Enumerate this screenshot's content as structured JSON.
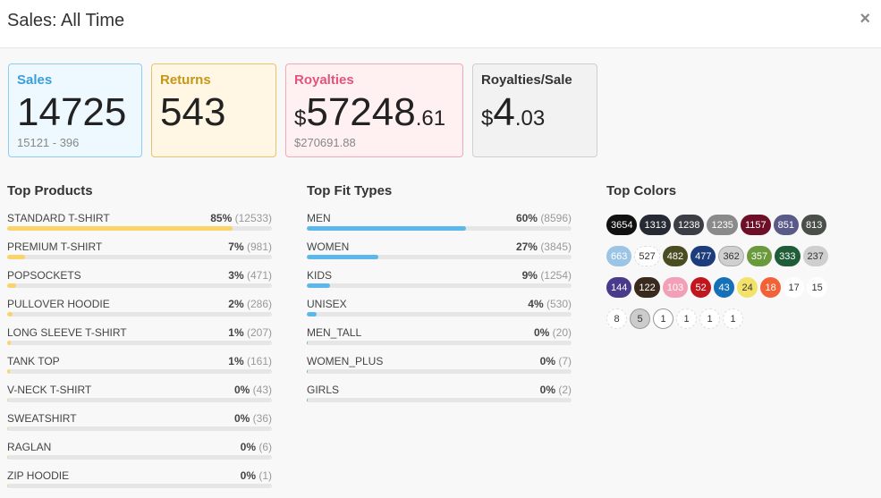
{
  "header": {
    "title": "Sales: All Time",
    "close_label": "×"
  },
  "cards": {
    "sales": {
      "label": "Sales",
      "value": "14725",
      "sub": "15121 - 396"
    },
    "returns": {
      "label": "Returns",
      "value": "543"
    },
    "royalties": {
      "label": "Royalties",
      "currency": "$",
      "whole": "57248",
      "decimal": ".61",
      "sub": "$270691.88"
    },
    "royalties_per_sale": {
      "label": "Royalties/Sale",
      "currency": "$",
      "whole": "4",
      "decimal": ".03"
    }
  },
  "top_products": {
    "title": "Top Products",
    "items": [
      {
        "name": "STANDARD T-SHIRT",
        "pct": "85%",
        "count": "(12533)",
        "fraction": 0.85
      },
      {
        "name": "PREMIUM T-SHIRT",
        "pct": "7%",
        "count": "(981)",
        "fraction": 0.066
      },
      {
        "name": "POPSOCKETS",
        "pct": "3%",
        "count": "(471)",
        "fraction": 0.032
      },
      {
        "name": "PULLOVER HOODIE",
        "pct": "2%",
        "count": "(286)",
        "fraction": 0.019
      },
      {
        "name": "LONG SLEEVE T-SHIRT",
        "pct": "1%",
        "count": "(207)",
        "fraction": 0.014
      },
      {
        "name": "TANK TOP",
        "pct": "1%",
        "count": "(161)",
        "fraction": 0.011
      },
      {
        "name": "V-NECK T-SHIRT",
        "pct": "0%",
        "count": "(43)",
        "fraction": 0.003
      },
      {
        "name": "SWEATSHIRT",
        "pct": "0%",
        "count": "(36)",
        "fraction": 0.002
      },
      {
        "name": "RAGLAN",
        "pct": "0%",
        "count": "(6)",
        "fraction": 0.0004
      },
      {
        "name": "ZIP HOODIE",
        "pct": "0%",
        "count": "(1)",
        "fraction": 0.0001
      }
    ]
  },
  "top_fit_types": {
    "title": "Top Fit Types",
    "items": [
      {
        "name": "MEN",
        "pct": "60%",
        "count": "(8596)",
        "fraction": 0.6
      },
      {
        "name": "WOMEN",
        "pct": "27%",
        "count": "(3845)",
        "fraction": 0.27
      },
      {
        "name": "KIDS",
        "pct": "9%",
        "count": "(1254)",
        "fraction": 0.088
      },
      {
        "name": "UNISEX",
        "pct": "4%",
        "count": "(530)",
        "fraction": 0.037
      },
      {
        "name": "MEN_TALL",
        "pct": "0%",
        "count": "(20)",
        "fraction": 0.0014
      },
      {
        "name": "WOMEN_PLUS",
        "pct": "0%",
        "count": "(7)",
        "fraction": 0.0005
      },
      {
        "name": "GIRLS",
        "pct": "0%",
        "count": "(2)",
        "fraction": 0.0001
      }
    ]
  },
  "top_colors": {
    "title": "Top Colors",
    "rows": [
      [
        {
          "count": "3654",
          "bg": "#111111",
          "fg": "#ffffff",
          "border": "#111111"
        },
        {
          "count": "1313",
          "bg": "#262a33",
          "fg": "#ffffff",
          "border": "#262a33"
        },
        {
          "count": "1238",
          "bg": "#3b3f45",
          "fg": "#ffffff",
          "border": "#3b3f45"
        },
        {
          "count": "1235",
          "bg": "#8a8a8a",
          "fg": "#ffffff",
          "border": "#8a8a8a"
        },
        {
          "count": "1157",
          "bg": "#6e0f28",
          "fg": "#ffffff",
          "border": "#6e0f28"
        },
        {
          "count": "851",
          "bg": "#5a5a88",
          "fg": "#ffffff",
          "border": "#5a5a88"
        },
        {
          "count": "813",
          "bg": "#4a4f4a",
          "fg": "#ffffff",
          "border": "#4a4f4a"
        }
      ],
      [
        {
          "count": "663",
          "bg": "#9cc4e4",
          "fg": "#ffffff",
          "border": "#9cc4e4"
        },
        {
          "count": "527",
          "bg": "#ffffff",
          "fg": "#333333",
          "border": "#dddddd"
        },
        {
          "count": "482",
          "bg": "#4a4d22",
          "fg": "#ffffff",
          "border": "#4a4d22"
        },
        {
          "count": "477",
          "bg": "#1c3c7c",
          "fg": "#ffffff",
          "border": "#1c3c7c"
        },
        {
          "count": "362",
          "bg": "#d0d0d0",
          "fg": "#333333",
          "border": "#aaaaaa"
        },
        {
          "count": "357",
          "bg": "#6a9a3c",
          "fg": "#ffffff",
          "border": "#6a9a3c"
        },
        {
          "count": "333",
          "bg": "#1f5c38",
          "fg": "#ffffff",
          "border": "#1f5c38"
        },
        {
          "count": "237",
          "bg": "#cfcfcf",
          "fg": "#333333",
          "border": "#cfcfcf"
        }
      ],
      [
        {
          "count": "144",
          "bg": "#4a3a8c",
          "fg": "#ffffff",
          "border": "#4a3a8c"
        },
        {
          "count": "122",
          "bg": "#3a2a1e",
          "fg": "#ffffff",
          "border": "#3a2a1e"
        },
        {
          "count": "103",
          "bg": "#f2a0b8",
          "fg": "#ffffff",
          "border": "#f2a0b8"
        },
        {
          "count": "52",
          "bg": "#c0161e",
          "fg": "#ffffff",
          "border": "#c0161e"
        },
        {
          "count": "43",
          "bg": "#1470b8",
          "fg": "#ffffff",
          "border": "#1470b8"
        },
        {
          "count": "24",
          "bg": "#f3e26a",
          "fg": "#333333",
          "border": "#f3e26a"
        },
        {
          "count": "18",
          "bg": "#f26236",
          "fg": "#ffffff",
          "border": "#f26236"
        },
        {
          "count": "17",
          "bg": "#ffffff",
          "fg": "#333333",
          "border": "#ffffff"
        },
        {
          "count": "15",
          "bg": "#ffffff",
          "fg": "#333333",
          "border": "#ffffff"
        }
      ],
      [
        {
          "count": "8",
          "bg": "#ffffff",
          "fg": "#333333",
          "border": "#dddddd"
        },
        {
          "count": "5",
          "bg": "#cccccc",
          "fg": "#333333",
          "border": "#999999"
        },
        {
          "count": "1",
          "bg": "#ffffff",
          "fg": "#333333",
          "border": "#999999"
        },
        {
          "count": "1",
          "bg": "#ffffff",
          "fg": "#333333",
          "border": "#dddddd"
        },
        {
          "count": "1",
          "bg": "#ffffff",
          "fg": "#333333",
          "border": "#dddddd"
        },
        {
          "count": "1",
          "bg": "#ffffff",
          "fg": "#333333",
          "border": "#dddddd"
        }
      ]
    ]
  }
}
